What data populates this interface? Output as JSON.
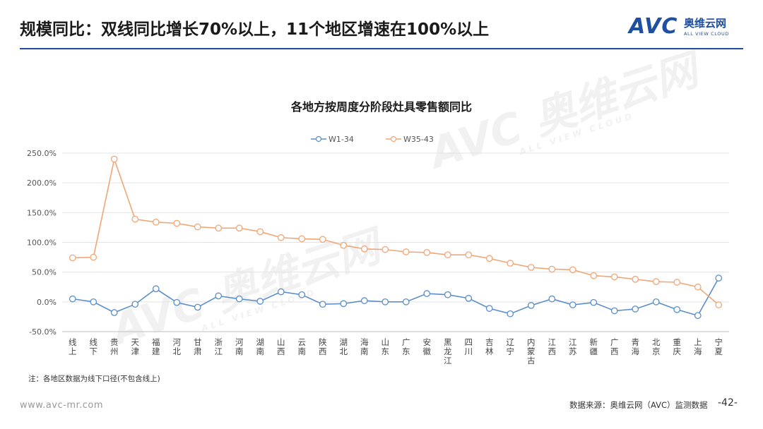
{
  "header": {
    "title": "规模同比：双线同比增长70%以上，11个地区增速在100%以上",
    "brand_logo": "AVC",
    "brand_cn": "奥维云网",
    "brand_en": "ALL VIEW CLOUD"
  },
  "watermark": {
    "logo": "AVC",
    "cn": "奥维云网",
    "en": "ALL VIEW CLOUD"
  },
  "chart_data": {
    "type": "line",
    "title": "各地方按周度分阶段灶具零售额同比",
    "categories": [
      "线上",
      "线下",
      "贵州",
      "天津",
      "福建",
      "河北",
      "甘肃",
      "浙江",
      "河南",
      "湖南",
      "山西",
      "云南",
      "陕西",
      "湖北",
      "海南",
      "山东",
      "广东",
      "安徽",
      "黑龙江",
      "四川",
      "吉林",
      "辽宁",
      "内蒙古",
      "江西",
      "江苏",
      "新疆",
      "广西",
      "青海",
      "北京",
      "重庆",
      "上海",
      "宁夏"
    ],
    "series": [
      {
        "name": "W1-34",
        "color": "#5b8ec9",
        "values": [
          5,
          0,
          -18,
          -4,
          22,
          -1,
          -9,
          10,
          5,
          1,
          17,
          12,
          -4,
          -3,
          2,
          0,
          0,
          14,
          12,
          6,
          -11,
          -20,
          -6,
          5,
          -5,
          -1,
          -15,
          -12,
          0,
          -13,
          -23,
          40
        ]
      },
      {
        "name": "W35-43",
        "color": "#f0a675",
        "values": [
          74,
          75,
          null,
          139,
          134,
          132,
          126,
          124,
          124,
          118,
          108,
          106,
          105,
          95,
          89,
          88,
          84,
          83,
          79,
          79,
          73,
          65,
          58,
          55,
          54,
          44,
          42,
          38,
          34,
          33,
          25,
          -5
        ]
      }
    ],
    "special_points": [
      {
        "series": "W35-43",
        "category": "贵州",
        "value": 240
      }
    ],
    "ylim": [
      -50,
      250
    ],
    "yticks": [
      -50,
      0,
      50,
      100,
      150,
      200,
      250
    ],
    "ytick_labels": [
      "-50.0%",
      "0.0%",
      "50.0%",
      "100.0%",
      "150.0%",
      "200.0%",
      "250.0%"
    ],
    "grid": true,
    "legend_position": "top-center"
  },
  "footer": {
    "note": "注：各地区数据为线下口径(不包含线上)",
    "website": "www.avc-mr.com",
    "source": "数据来源：奥维云网（AVC）监测数据",
    "page": "-42-"
  }
}
